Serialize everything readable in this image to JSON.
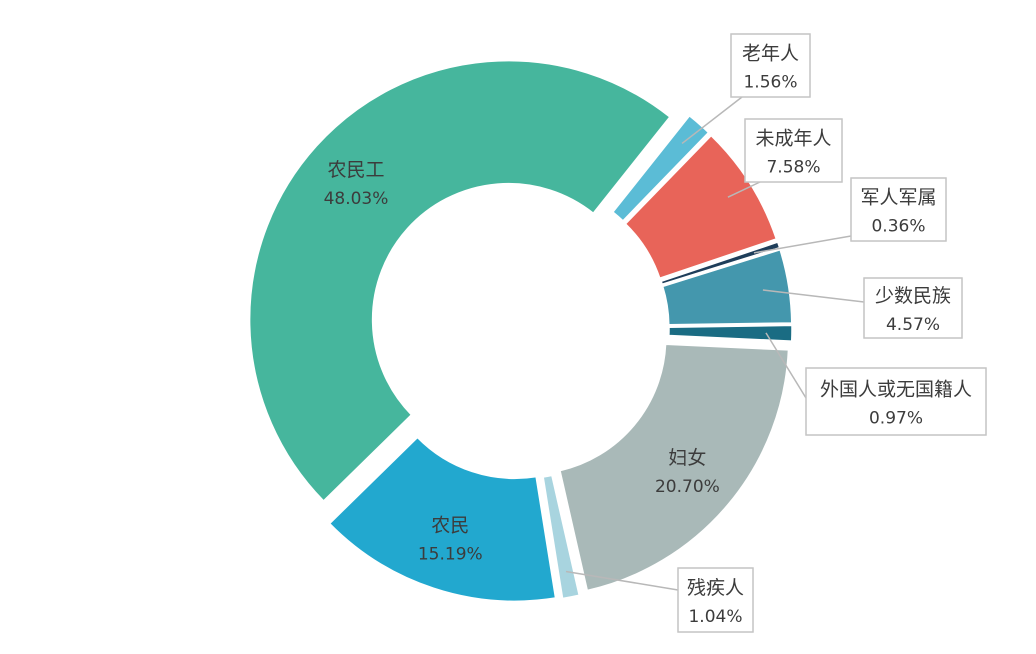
{
  "chart_data": {
    "type": "pie",
    "variant": "donut",
    "title": "",
    "legend": "none",
    "slices": [
      {
        "name": "老年人",
        "value": 1.56,
        "value_label": "1.56%",
        "color": "#5BBCD6",
        "label_position": "callout"
      },
      {
        "name": "未成年人",
        "value": 7.58,
        "value_label": "7.58%",
        "color": "#E86459",
        "label_position": "callout"
      },
      {
        "name": "军人军属",
        "value": 0.36,
        "value_label": "0.36%",
        "color": "#1F3E5A",
        "label_position": "callout"
      },
      {
        "name": "少数民族",
        "value": 4.57,
        "value_label": "4.57%",
        "color": "#4497AD",
        "label_position": "callout"
      },
      {
        "name": "外国人或无国籍人",
        "value": 0.97,
        "value_label": "0.97%",
        "color": "#1A6C83",
        "label_position": "callout"
      },
      {
        "name": "妇女",
        "value": 20.7,
        "value_label": "20.70%",
        "color": "#A9B9B8",
        "label_position": "inside"
      },
      {
        "name": "残疾人",
        "value": 1.04,
        "value_label": "1.04%",
        "color": "#A8D4DF",
        "label_position": "callout"
      },
      {
        "name": "农民",
        "value": 15.19,
        "value_label": "15.19%",
        "color": "#22A8CF",
        "label_position": "inside"
      },
      {
        "name": "农民工",
        "value": 48.03,
        "value_label": "48.03%",
        "color": "#46B69D",
        "label_position": "inside"
      }
    ]
  }
}
